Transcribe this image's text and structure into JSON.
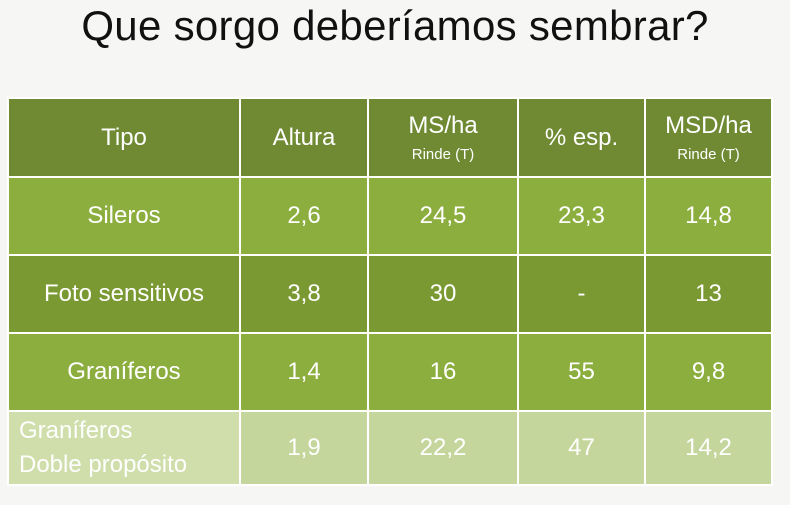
{
  "title": "Que sorgo deberíamos sembrar?",
  "table": {
    "headers": [
      {
        "label": "Tipo",
        "sub": ""
      },
      {
        "label": "Altura",
        "sub": ""
      },
      {
        "label": "MS/ha",
        "sub": "Rinde (T)"
      },
      {
        "label": "% esp.",
        "sub": ""
      },
      {
        "label": "MSD/ha",
        "sub": "Rinde (T)"
      }
    ],
    "rows": [
      {
        "tipo": "Sileros",
        "altura": "2,6",
        "ms_ha": "24,5",
        "esp": "23,3",
        "msd_ha": "14,8"
      },
      {
        "tipo": "Foto sensitivos",
        "altura": "3,8",
        "ms_ha": "30",
        "esp": "-",
        "msd_ha": "13"
      },
      {
        "tipo": "Graníferos",
        "altura": "1,4",
        "ms_ha": "16",
        "esp": "55",
        "msd_ha": "9,8"
      },
      {
        "tipo_line1": "Graníferos",
        "tipo_line2": "Doble propósito",
        "altura": "1,9",
        "ms_ha": "22,2",
        "esp": "47",
        "msd_ha": "14,2"
      }
    ]
  },
  "colors": {
    "header_bg": "#6f8a33",
    "row_bg": "#8cae3e",
    "row_alt_bg": "#7b9932",
    "last_row_bg": "#c5d69c",
    "text": "#ffffff"
  }
}
